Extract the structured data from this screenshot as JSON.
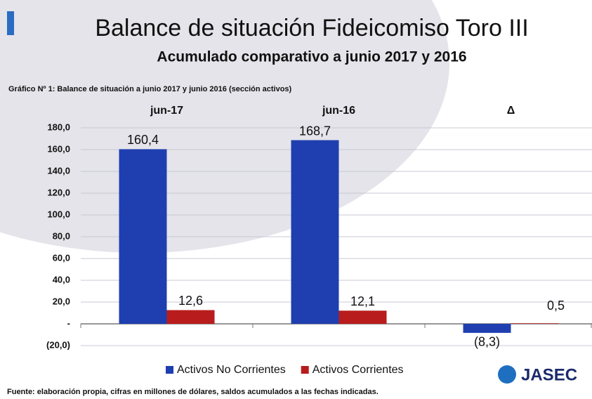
{
  "chart_data": {
    "type": "bar",
    "title": "Balance de situación Fideicomiso Toro III",
    "subtitle": "Acumulado comparativo a  junio 2017 y 2016",
    "caption": "Gráfico Nº 1: Balance de situación a junio 2017 y junio 2016 (sección activos)",
    "source": "Fuente: elaboración propia, cifras en millones de dólares, saldos acumulados a las fechas indicadas.",
    "logo": "JASEC",
    "categories": [
      "jun-17",
      "jun-16",
      "Δ"
    ],
    "series": [
      {
        "name": "Activos No Corrientes",
        "color": "#1f3fb0",
        "values": [
          160.4,
          168.7,
          -8.3
        ],
        "value_labels": [
          "160,4",
          "168,7",
          "(8,3)"
        ]
      },
      {
        "name": "Activos Corrientes",
        "color": "#b81c1c",
        "values": [
          12.6,
          12.1,
          0.5
        ],
        "value_labels": [
          "12,6",
          "12,1",
          "0,5"
        ]
      }
    ],
    "ylim": [
      -20,
      180
    ],
    "yticks": [
      {
        "value": -20,
        "label": "(20,0)"
      },
      {
        "value": 0,
        "label": "-"
      },
      {
        "value": 20,
        "label": "20,0"
      },
      {
        "value": 40,
        "label": "40,0"
      },
      {
        "value": 60,
        "label": "60,0"
      },
      {
        "value": 80,
        "label": "80,0"
      },
      {
        "value": 100,
        "label": "100,0"
      },
      {
        "value": 120,
        "label": "120,0"
      },
      {
        "value": 140,
        "label": "140,0"
      },
      {
        "value": 160,
        "label": "160,0"
      },
      {
        "value": 180,
        "label": "180,0"
      }
    ],
    "grid": true
  }
}
